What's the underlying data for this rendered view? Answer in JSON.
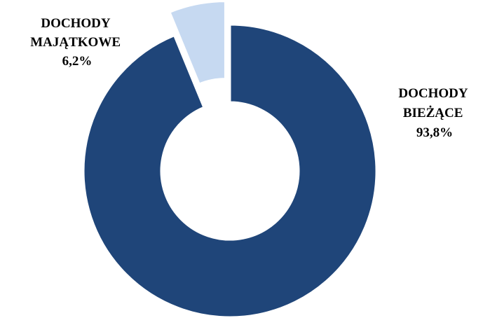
{
  "chart_data": {
    "type": "pie",
    "variant": "doughnut",
    "title": "",
    "legend": "none",
    "slices": [
      {
        "key": "biezace",
        "label_lines": [
          "DOCHODY",
          "BIEŻĄCE"
        ],
        "value": 93.8,
        "value_label": "93,8%",
        "color": "#1f4579",
        "exploded": false
      },
      {
        "key": "majatkowe",
        "label_lines": [
          "DOCHODY",
          "MAJĄTKOWE"
        ],
        "value": 6.2,
        "value_label": "6,2%",
        "color": "#c6d9f1",
        "exploded": true
      }
    ]
  }
}
